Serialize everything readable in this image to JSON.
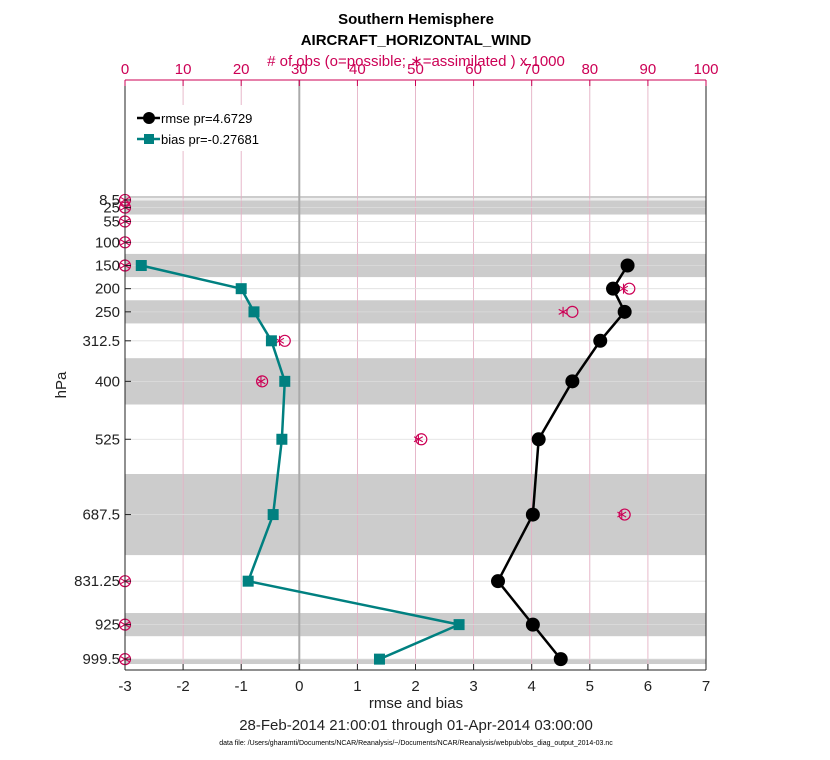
{
  "chart_data": {
    "type": "line",
    "title": "Southern Hemisphere",
    "subtitle": "AIRCRAFT_HORIZONTAL_WIND",
    "top_axis_label": "# of obs (o=possible; ∗=assimilated ) x 1000",
    "xlabel": "rmse and bias",
    "ylabel": "hPa",
    "date_range": "28-Feb-2014 21:00:01 through 01-Apr-2014 03:00:00",
    "footnote": "data file: /Users/gharamti/Documents/NCAR/Reanalysis/~/Documents/NCAR/Reanalysis/webpub/obs_diag_output_2014-03.nc",
    "xlim": [
      -3,
      7
    ],
    "x_ticks": [
      -3,
      -2,
      -1,
      0,
      1,
      2,
      3,
      4,
      5,
      6,
      7
    ],
    "top_xlim": [
      0,
      100
    ],
    "top_ticks": [
      0,
      10,
      20,
      30,
      40,
      50,
      60,
      70,
      80,
      90,
      100
    ],
    "y_reverse": true,
    "levels": [
      8.5,
      25,
      55,
      100,
      150,
      200,
      250,
      312.5,
      400,
      525,
      687.5,
      831.25,
      925,
      999.5
    ],
    "level_labels": [
      "8.5",
      "25",
      "55",
      "100",
      "150",
      "200",
      "250",
      "312.5",
      "400",
      "525",
      "687.5",
      "831.25",
      "925",
      "999.5"
    ],
    "layer_bands": [
      [
        0,
        5
      ],
      [
        10,
        40
      ],
      [
        125,
        175
      ],
      [
        225,
        275
      ],
      [
        350,
        450
      ],
      [
        600,
        775
      ],
      [
        900,
        950
      ],
      [
        1000,
        1010
      ]
    ],
    "zero_line": 0,
    "grid": true,
    "series": [
      {
        "name": "rmse",
        "legend": "rmse pr=4.6729",
        "color": "#000000",
        "marker": "circle",
        "points": [
          {
            "level": 150,
            "value": 5.65
          },
          {
            "level": 200,
            "value": 5.4
          },
          {
            "level": 250,
            "value": 5.6
          },
          {
            "level": 312.5,
            "value": 5.18
          },
          {
            "level": 400,
            "value": 4.7
          },
          {
            "level": 525,
            "value": 4.12
          },
          {
            "level": 687.5,
            "value": 4.02
          },
          {
            "level": 831.25,
            "value": 3.42
          },
          {
            "level": 925,
            "value": 4.02
          },
          {
            "level": 999.5,
            "value": 4.5
          }
        ]
      },
      {
        "name": "bias",
        "legend": "bias pr=-0.27681",
        "color": "#008080",
        "marker": "square",
        "points": [
          {
            "level": 150,
            "value": -2.72
          },
          {
            "level": 200,
            "value": -1.0
          },
          {
            "level": 250,
            "value": -0.78
          },
          {
            "level": 312.5,
            "value": -0.48
          },
          {
            "level": 400,
            "value": -0.25
          },
          {
            "level": 525,
            "value": -0.3
          },
          {
            "level": 687.5,
            "value": -0.45
          },
          {
            "level": 831.25,
            "value": -0.88
          },
          {
            "level": 925,
            "value": 2.75
          },
          {
            "level": 999.5,
            "value": 1.38
          }
        ]
      }
    ],
    "obs_counts": {
      "color": "#cc0055",
      "possible": [
        {
          "level": 8.5,
          "count": 0
        },
        {
          "level": 25,
          "count": 0
        },
        {
          "level": 55,
          "count": 0
        },
        {
          "level": 100,
          "count": 0
        },
        {
          "level": 150,
          "count": 0
        },
        {
          "level": 200,
          "count": 86.8
        },
        {
          "level": 250,
          "count": 77.0
        },
        {
          "level": 312.5,
          "count": 27.5
        },
        {
          "level": 400,
          "count": 23.6
        },
        {
          "level": 525,
          "count": 51.0
        },
        {
          "level": 687.5,
          "count": 86.0
        },
        {
          "level": 831.25,
          "count": 0
        },
        {
          "level": 925,
          "count": 0
        },
        {
          "level": 999.5,
          "count": 0
        }
      ],
      "assimilated": [
        {
          "level": 8.5,
          "count": 0
        },
        {
          "level": 25,
          "count": 0
        },
        {
          "level": 55,
          "count": 0
        },
        {
          "level": 100,
          "count": 0
        },
        {
          "level": 150,
          "count": 0
        },
        {
          "level": 200,
          "count": 85.8
        },
        {
          "level": 250,
          "count": 75.4
        },
        {
          "level": 312.5,
          "count": 26.6
        },
        {
          "level": 400,
          "count": 23.4
        },
        {
          "level": 525,
          "count": 50.5
        },
        {
          "level": 687.5,
          "count": 85.5
        },
        {
          "level": 831.25,
          "count": 0
        },
        {
          "level": 925,
          "count": 0
        },
        {
          "level": 999.5,
          "count": 0
        }
      ]
    }
  }
}
